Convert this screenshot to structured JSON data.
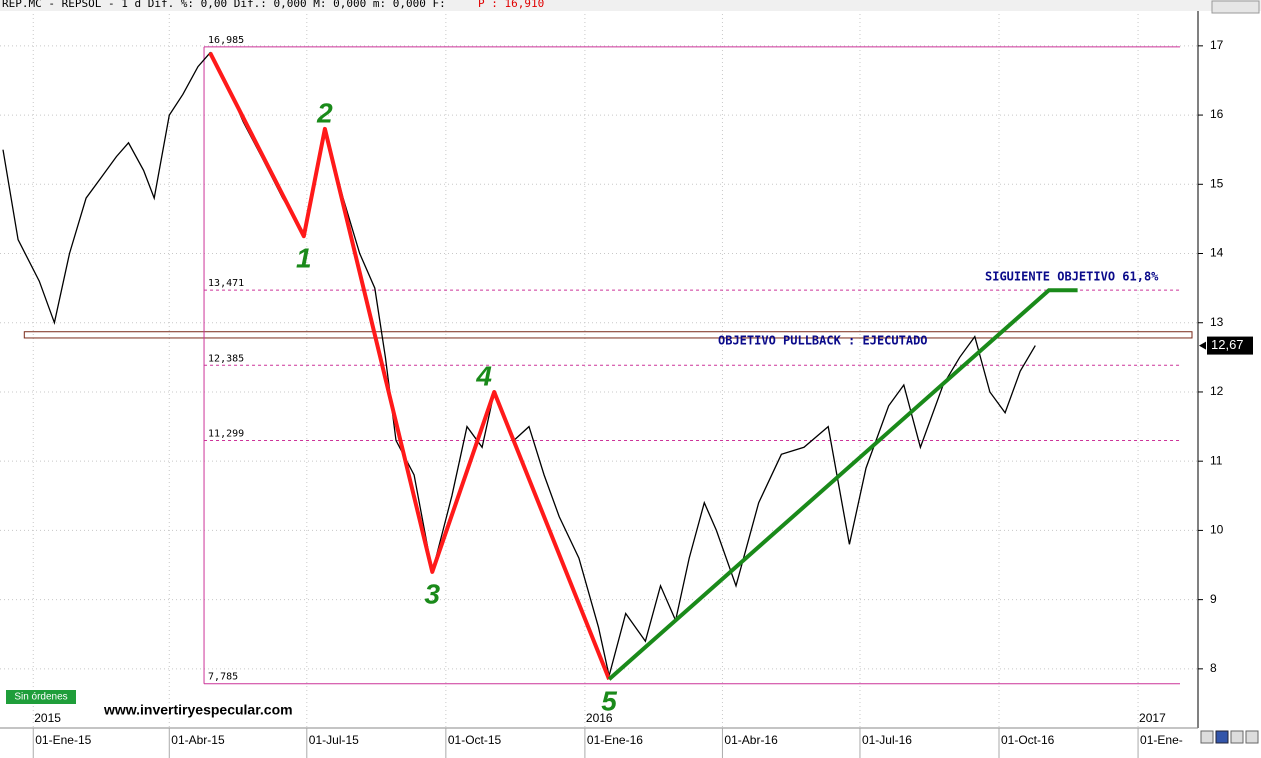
{
  "chart_data": {
    "type": "line",
    "title": "REP.MC - REPSOL -  1 d Dif. %: 0,00 Dif.: 0,000 M: 0,000 m: 0,000 F:",
    "title_price": "P : 16,910",
    "x": [
      "2014-12-12",
      "2014-12-22",
      "2015-01-05",
      "2015-01-15",
      "2015-01-25",
      "2015-02-05",
      "2015-02-15",
      "2015-02-25",
      "2015-03-05",
      "2015-03-15",
      "2015-03-22",
      "2015-04-01",
      "2015-04-10",
      "2015-04-20",
      "2015-04-28",
      "2015-05-10",
      "2015-05-20",
      "2015-06-01",
      "2015-06-15",
      "2015-06-29",
      "2015-07-13",
      "2015-07-25",
      "2015-08-05",
      "2015-08-15",
      "2015-08-22",
      "2015-08-29",
      "2015-09-10",
      "2015-09-22",
      "2015-10-05",
      "2015-10-15",
      "2015-10-25",
      "2015-11-02",
      "2015-11-15",
      "2015-11-25",
      "2015-12-05",
      "2015-12-15",
      "2015-12-28",
      "2016-01-10",
      "2016-01-17",
      "2016-01-28",
      "2016-02-10",
      "2016-02-20",
      "2016-03-01",
      "2016-03-10",
      "2016-03-20",
      "2016-03-28",
      "2016-04-10",
      "2016-04-25",
      "2016-05-10",
      "2016-05-25",
      "2016-06-10",
      "2016-06-24",
      "2016-07-05",
      "2016-07-20",
      "2016-07-30",
      "2016-08-10",
      "2016-08-25",
      "2016-09-05",
      "2016-09-15",
      "2016-09-25",
      "2016-10-05",
      "2016-10-15",
      "2016-10-25"
    ],
    "values": [
      15.5,
      14.2,
      13.6,
      13.0,
      14.0,
      14.8,
      15.1,
      15.4,
      15.6,
      15.2,
      14.8,
      16.0,
      16.3,
      16.7,
      16.9,
      16.4,
      15.9,
      15.4,
      14.8,
      14.3,
      15.8,
      14.8,
      14.0,
      13.5,
      12.5,
      11.3,
      10.8,
      9.4,
      10.5,
      11.5,
      11.2,
      12.0,
      11.3,
      11.5,
      10.8,
      10.2,
      9.6,
      8.6,
      7.9,
      8.8,
      8.4,
      9.2,
      8.7,
      9.6,
      10.4,
      10.0,
      9.2,
      10.4,
      11.1,
      11.2,
      11.5,
      9.8,
      10.9,
      11.8,
      12.1,
      11.2,
      12.1,
      12.5,
      12.8,
      12.0,
      11.7,
      12.3,
      12.67
    ],
    "color": "#000000",
    "xlim": [
      "2014-12-10",
      "2017-02-09"
    ],
    "xticks": [
      {
        "value": "2015-01-01",
        "label": "01-Ene-15"
      },
      {
        "value": "2015-04-01",
        "label": "01-Abr-15"
      },
      {
        "value": "2015-07-01",
        "label": "01-Jul-15"
      },
      {
        "value": "2015-10-01",
        "label": "01-Oct-15"
      },
      {
        "value": "2016-01-01",
        "label": "01-Ene-16"
      },
      {
        "value": "2016-04-01",
        "label": "01-Abr-16"
      },
      {
        "value": "2016-07-01",
        "label": "01-Jul-16"
      },
      {
        "value": "2016-10-01",
        "label": "01-Oct-16"
      },
      {
        "value": "2017-01-01",
        "label": "01-Ene-"
      }
    ],
    "year_ticks": [
      {
        "value": "2015-01-01",
        "label": "2015"
      },
      {
        "value": "2016-01-01",
        "label": "2016"
      },
      {
        "value": "2017-01-01",
        "label": "2017"
      }
    ],
    "ylim": [
      7.16,
      17.46
    ],
    "yticks": [
      8,
      9,
      10,
      11,
      12,
      13,
      14,
      15,
      16,
      17
    ],
    "grid": true,
    "last_price": {
      "value": 12.67,
      "label": "12,67"
    },
    "fib_x": "2015-04-24",
    "fib_color": "#cc3399",
    "levels": [
      {
        "value": 16.985,
        "label": "16,985",
        "style": "solid"
      },
      {
        "value": 13.471,
        "label": "13,471",
        "style": "dashed"
      },
      {
        "value": 12.385,
        "label": "12,385",
        "style": "dashed"
      },
      {
        "value": 11.299,
        "label": "11,299",
        "style": "dashed"
      },
      {
        "value": 7.785,
        "label": "7,785",
        "style": "solid"
      }
    ],
    "resistance": [
      12.78,
      12.87
    ],
    "waves": {
      "color": "#ff1a1a",
      "x": [
        "2015-04-28",
        "2015-06-29",
        "2015-07-13",
        "2015-09-22",
        "2015-11-02",
        "2016-01-17"
      ],
      "values": [
        16.9,
        14.25,
        15.8,
        9.4,
        12.0,
        7.85
      ],
      "point_labels": [
        null,
        "1",
        "2",
        "3",
        "4",
        "5"
      ],
      "label_color": "#1a8a1a"
    },
    "trend": {
      "color": "#1a8a1a",
      "x": [
        "2016-01-17",
        "2016-11-03",
        "2016-11-22"
      ],
      "values": [
        7.85,
        13.47,
        13.47
      ]
    },
    "annotations": [
      "OBJETIVO PULLBACK : EJECUTADO",
      "SIGUIENTE OBJETIVO 61,8%"
    ],
    "watermark": "www.invertiryespecular.com",
    "status": "Sin órdenes"
  }
}
